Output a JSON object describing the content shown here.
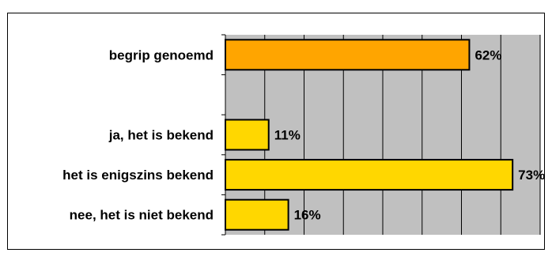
{
  "chart_data": {
    "type": "bar",
    "orientation": "horizontal",
    "categories": [
      "begrip genoemd",
      "ja, het is bekend",
      "het is enigszins bekend",
      "nee, het is niet bekend"
    ],
    "values": [
      62,
      11,
      73,
      16
    ],
    "data_labels": [
      "62%",
      "11%",
      "73%",
      "16%"
    ],
    "bar_colors": [
      "#FFA500",
      "#FFD700",
      "#FFD700",
      "#FFD700"
    ],
    "xlim": [
      0,
      80
    ],
    "grid": true,
    "plot_background": "#C0C0C0",
    "bar_border": "#000000"
  }
}
